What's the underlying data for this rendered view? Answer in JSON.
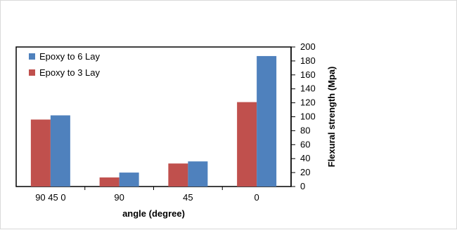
{
  "chart_data": {
    "type": "bar",
    "categories": [
      "90 45 0",
      "90",
      "45",
      "0"
    ],
    "series": [
      {
        "name": "Epoxy to 3 Lay",
        "color": "#c0504d",
        "values": [
          96,
          13,
          33,
          121
        ]
      },
      {
        "name": "Epoxy to 6 Lay",
        "color": "#4f81bd",
        "values": [
          102,
          20,
          36,
          187
        ]
      }
    ],
    "legend_order": [
      "Epoxy to 6 Lay",
      "Epoxy to 3 Lay"
    ],
    "legend_position": "top-left",
    "xlabel": "angle  (degree)",
    "ylabel": "Flexural strength  (Mpa)",
    "y_axis_side": "right",
    "ylim": [
      0,
      200
    ],
    "yticks": [
      0,
      20,
      40,
      60,
      80,
      100,
      120,
      140,
      160,
      180,
      200
    ],
    "grid": false
  }
}
